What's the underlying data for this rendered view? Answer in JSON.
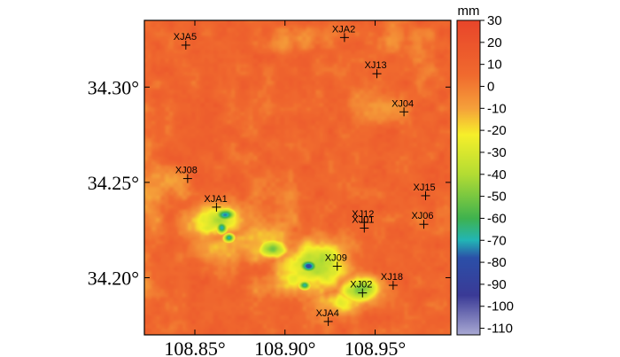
{
  "chart_data": {
    "type": "heatmap",
    "title": "",
    "xlabel": "",
    "ylabel": "",
    "xlim": [
      108.822,
      108.992
    ],
    "ylim": [
      34.17,
      34.335
    ],
    "x_ticks": [
      {
        "value": 108.85,
        "label": "108.85°"
      },
      {
        "value": 108.9,
        "label": "108.90°"
      },
      {
        "value": 108.95,
        "label": "108.95°"
      }
    ],
    "y_ticks": [
      {
        "value": 34.2,
        "label": "34.20°"
      },
      {
        "value": 34.25,
        "label": "34.25°"
      },
      {
        "value": 34.3,
        "label": "34.30°"
      }
    ],
    "colorbar": {
      "unit": "mm",
      "range": [
        -113,
        30
      ],
      "ticks": [
        30,
        20,
        10,
        0,
        -10,
        -20,
        -30,
        -40,
        -50,
        -60,
        -70,
        -80,
        -90,
        -100,
        -110
      ],
      "stops": [
        {
          "value": 30,
          "color": "#e8452a"
        },
        {
          "value": 5,
          "color": "#f06a2e"
        },
        {
          "value": -10,
          "color": "#f5a03a"
        },
        {
          "value": -22,
          "color": "#f6ef2a"
        },
        {
          "value": -40,
          "color": "#b3dc33"
        },
        {
          "value": -60,
          "color": "#3fb24e"
        },
        {
          "value": -70,
          "color": "#22b5b5"
        },
        {
          "value": -78,
          "color": "#2b4fa8"
        },
        {
          "value": -95,
          "color": "#3a3a96"
        },
        {
          "value": -113,
          "color": "#a9a9d3"
        }
      ]
    },
    "background_value": 8,
    "subsidence_zones": [
      {
        "lon": 108.862,
        "lat": 34.23,
        "rx": 0.02,
        "ry": 0.01,
        "min": -45
      },
      {
        "lon": 108.867,
        "lat": 34.233,
        "rx": 0.007,
        "ry": 0.004,
        "min": -80
      },
      {
        "lon": 108.865,
        "lat": 34.226,
        "rx": 0.004,
        "ry": 0.004,
        "min": -82
      },
      {
        "lon": 108.869,
        "lat": 34.221,
        "rx": 0.004,
        "ry": 0.003,
        "min": -78
      },
      {
        "lon": 108.893,
        "lat": 34.215,
        "rx": 0.01,
        "ry": 0.006,
        "min": -60
      },
      {
        "lon": 108.916,
        "lat": 34.205,
        "rx": 0.025,
        "ry": 0.016,
        "min": -45
      },
      {
        "lon": 108.913,
        "lat": 34.206,
        "rx": 0.006,
        "ry": 0.004,
        "min": -95
      },
      {
        "lon": 108.911,
        "lat": 34.196,
        "rx": 0.004,
        "ry": 0.003,
        "min": -82
      },
      {
        "lon": 108.942,
        "lat": 34.194,
        "rx": 0.014,
        "ry": 0.009,
        "min": -55
      },
      {
        "lon": 108.93,
        "lat": 34.187,
        "rx": 0.018,
        "ry": 0.008,
        "min": -30
      },
      {
        "lon": 108.885,
        "lat": 34.218,
        "rx": 0.03,
        "ry": 0.014,
        "min": -25
      }
    ],
    "stations": [
      {
        "name": "XJA5",
        "lon": 108.845,
        "lat": 34.322
      },
      {
        "name": "XJA2",
        "lon": 108.933,
        "lat": 34.326
      },
      {
        "name": "XJ13",
        "lon": 108.951,
        "lat": 34.307
      },
      {
        "name": "XJ04",
        "lon": 108.966,
        "lat": 34.287
      },
      {
        "name": "XJ08",
        "lon": 108.846,
        "lat": 34.252
      },
      {
        "name": "XJA1",
        "lon": 108.862,
        "lat": 34.237
      },
      {
        "name": "XJ15",
        "lon": 108.978,
        "lat": 34.243
      },
      {
        "name": "XJ12",
        "lon": 108.944,
        "lat": 34.229
      },
      {
        "name": "XJ01",
        "lon": 108.944,
        "lat": 34.226
      },
      {
        "name": "XJ06",
        "lon": 108.977,
        "lat": 34.228
      },
      {
        "name": "XJ09",
        "lon": 108.929,
        "lat": 34.206
      },
      {
        "name": "XJ18",
        "lon": 108.96,
        "lat": 34.196
      },
      {
        "name": "XJ02",
        "lon": 108.943,
        "lat": 34.192
      },
      {
        "name": "XJA4",
        "lon": 108.924,
        "lat": 34.177
      }
    ]
  }
}
